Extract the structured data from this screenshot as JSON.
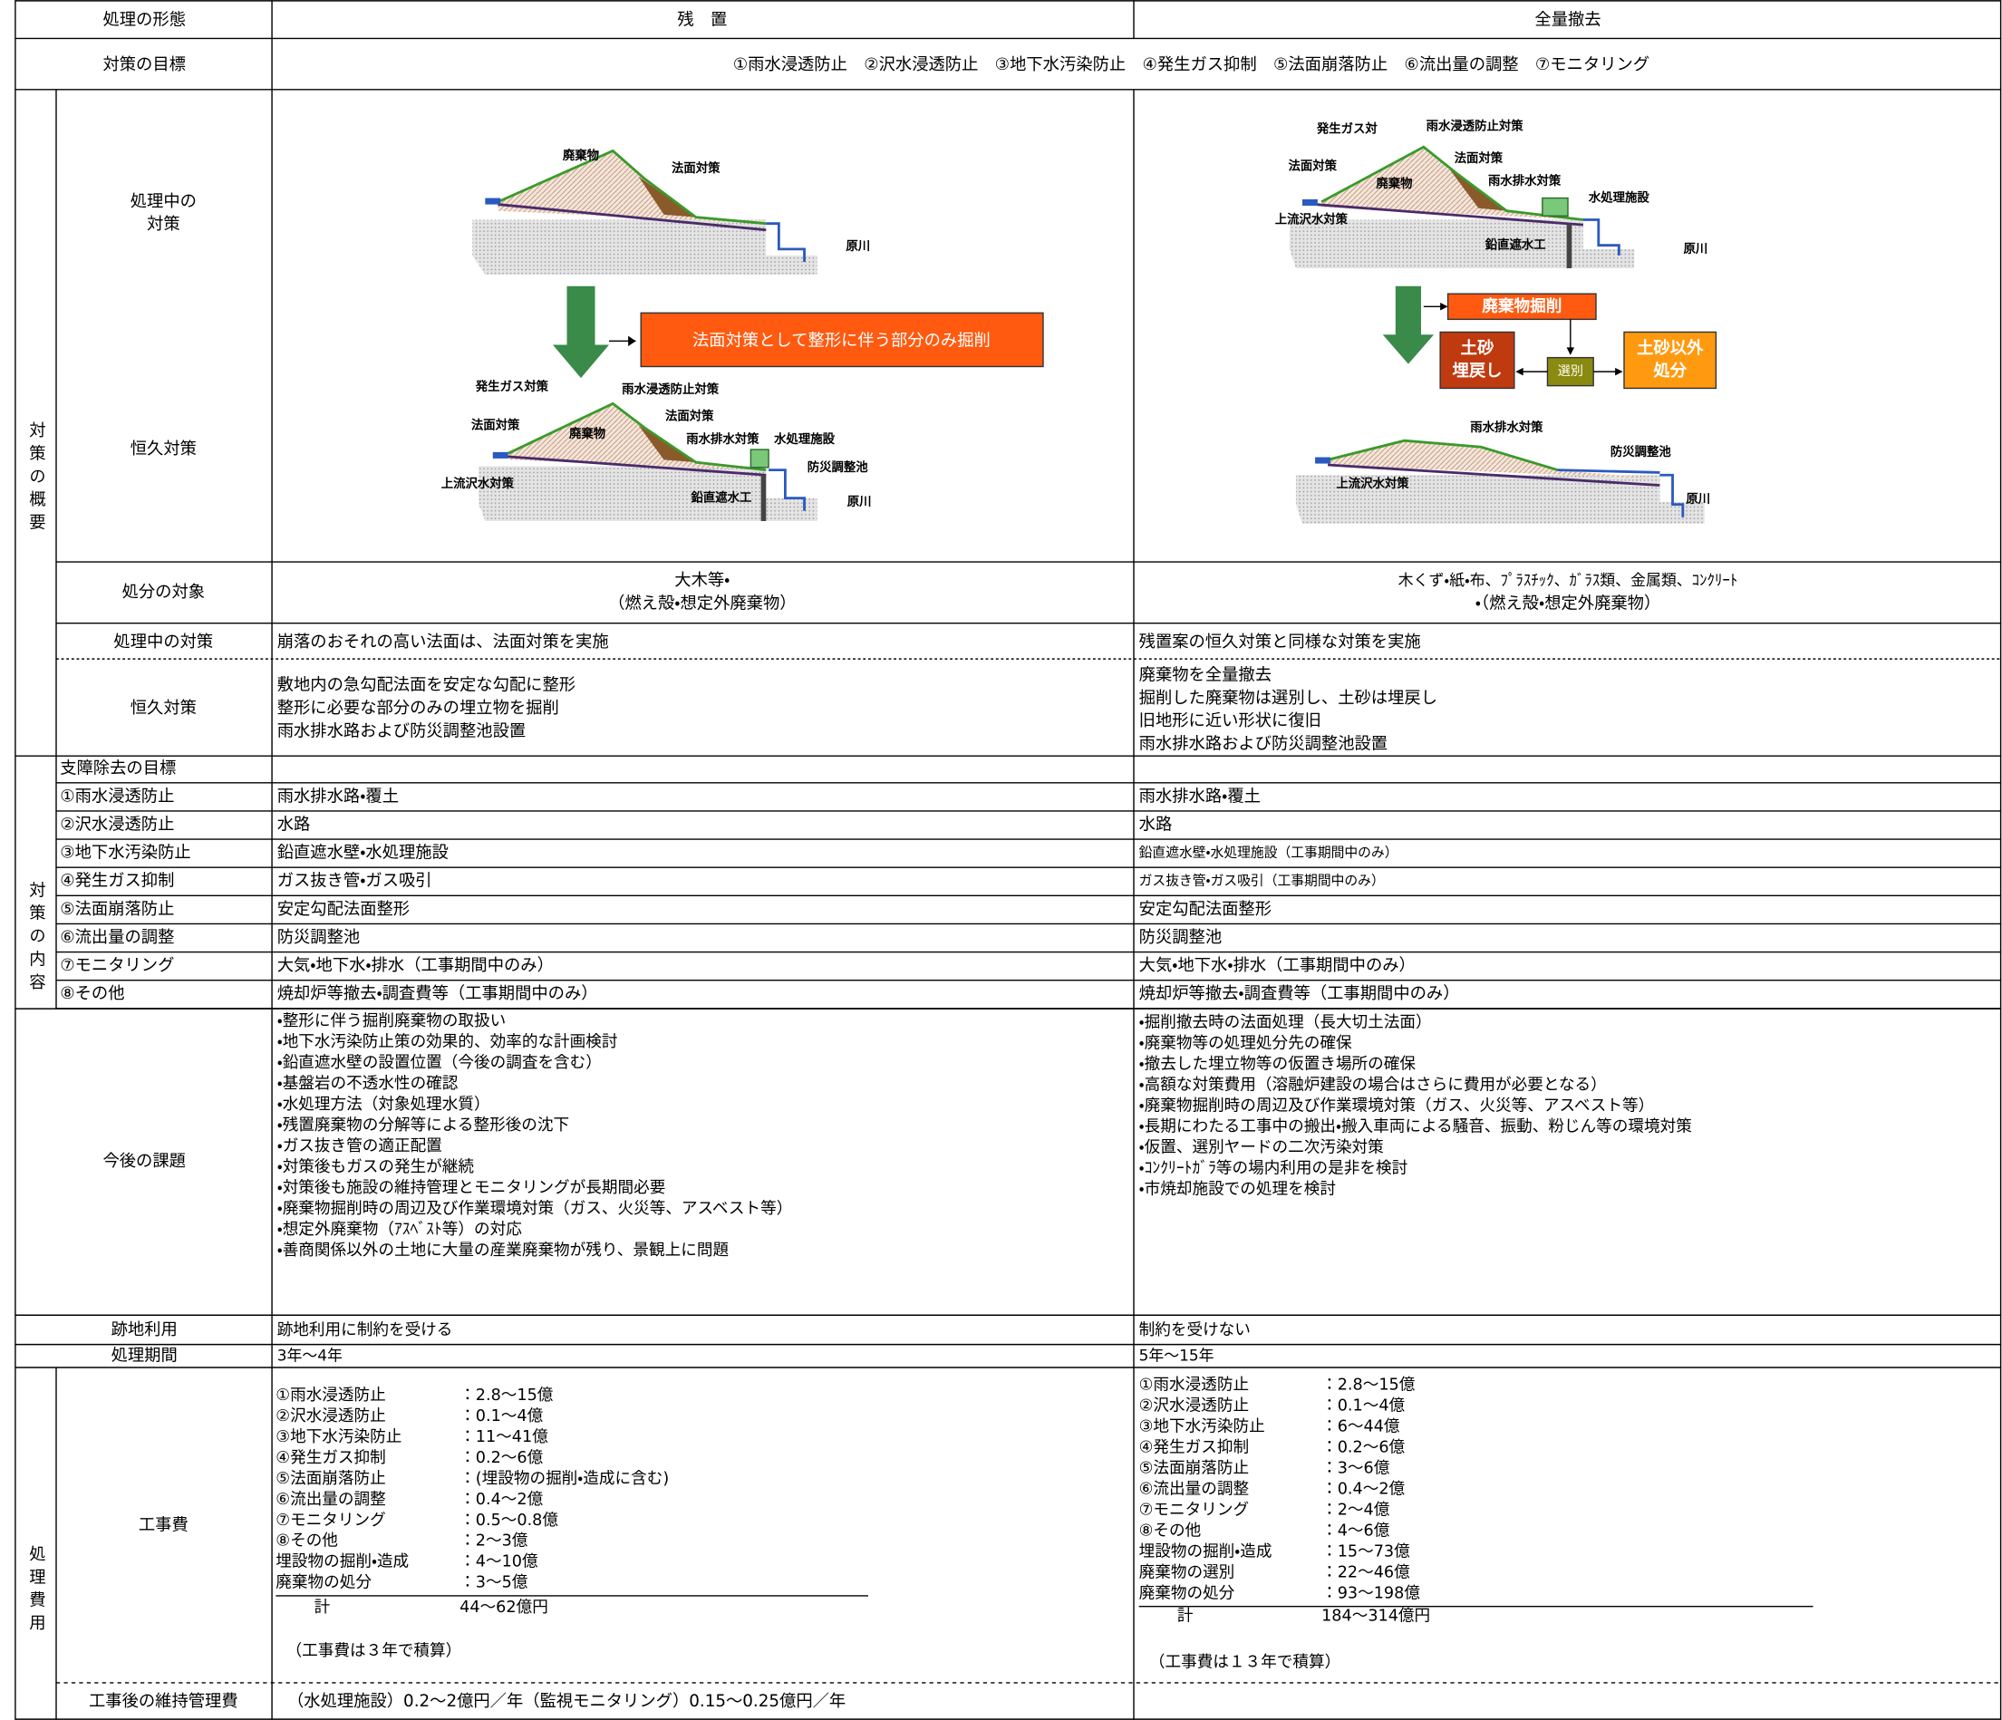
{
  "header": {
    "label": "処理の形態",
    "left": "残　置",
    "right": "全量撤去"
  },
  "goals": {
    "label": "対策の目標",
    "text": "①雨水浸透防止　②沢水浸透防止　③地下水汚染防止　④発生ガス抑制　⑤法面崩落防止　⑥流出量の調整　⑦モニタリング"
  },
  "overview": {
    "label": "対策の概要",
    "during": [
      "処理中の",
      "対策"
    ],
    "permanent": "恒久対策",
    "left_during_labels": [
      "廃棄物",
      "法面対策",
      "原川"
    ],
    "left_arrow_note": "法面対策として整形に伴う部分のみ掘削",
    "left_permanent_labels": [
      "発生ガス対策",
      "雨水浸透防止対策",
      "法面対策",
      "廃棄物",
      "法面対策",
      "雨水排水対策",
      "水処理施設",
      "防災調整池",
      "上流沢水対策",
      "鉛直遮水工",
      "原川"
    ],
    "right_during_labels": [
      "発生ガス対",
      "雨水浸透防止対策",
      "法面対策",
      "廃棄物",
      "法面対策",
      "雨水排水対策",
      "水処理施設",
      "上流沢水対策",
      "鉛直遮水工",
      "原川"
    ],
    "right_flow": [
      "廃棄物掘削",
      "土砂",
      "埋戻し",
      "選別",
      "土砂以外",
      "処分"
    ],
    "right_permanent_labels": [
      "雨水排水対策",
      "防災調整池",
      "上流沢水対策",
      "原川"
    ]
  },
  "disposal": {
    "label": "処分の対象",
    "left": [
      "大木等・",
      "（燃え殻・想定外廃棄物）"
    ],
    "right": [
      "木くず・紙・布、ﾌﾟﾗｽﾁｯｸ、ｶﾞﾗｽ類、金属類、ｺﾝｸﾘｰﾄ",
      "・（燃え殻・想定外廃棄物）"
    ]
  },
  "during_measures": {
    "label": "処理中の対策",
    "left": "崩落のおそれの高い法面は、法面対策を実施",
    "right": "残置案の恒久対策と同様な対策を実施"
  },
  "permanent_measures": {
    "label": "恒久対策",
    "left": [
      "敷地内の急勾配法面を安定な勾配に整形",
      "整形に必要な部分のみの埋立物を掘削",
      "雨水排水路および防災調整池設置"
    ],
    "right": [
      "廃棄物を全量撤去",
      "掘削した廃棄物は選別し、土砂は埋戻し",
      "旧地形に近い形状に復旧",
      "雨水排水路および防災調整池設置"
    ]
  },
  "contents": {
    "label": "対策の内容",
    "header": "支障除去の目標",
    "rows": [
      [
        "①雨水浸透防止",
        "雨水排水路・覆土",
        "雨水排水路・覆土"
      ],
      [
        "②沢水浸透防止",
        "水路",
        "水路"
      ],
      [
        "③地下水汚染防止",
        "鉛直遮水壁・水処理施設",
        "鉛直遮水壁・水処理施設（工事期間中のみ）"
      ],
      [
        "④発生ガス抑制",
        "ガス抜き管・ガス吸引",
        "ガス抜き管・ガス吸引（工事期間中のみ）"
      ],
      [
        "⑤法面崩落防止",
        "安定勾配法面整形",
        "安定勾配法面整形"
      ],
      [
        "⑥流出量の調整",
        "防災調整池",
        "防災調整池"
      ],
      [
        "⑦モニタリング",
        "大気・地下水・排水（工事期間中のみ）",
        "大気・地下水・排水（工事期間中のみ）"
      ],
      [
        "⑧その他",
        "焼却炉等撤去・調査費等（工事期間中のみ）",
        "焼却炉等撤去・調査費等（工事期間中のみ）"
      ]
    ]
  },
  "issues": {
    "label": "今後の課題",
    "left": [
      "・整形に伴う掘削廃棄物の取扱い",
      "・地下水汚染防止策の効果的、効率的な計画検討",
      "・鉛直遮水壁の設置位置（今後の調査を含む）",
      "・基盤岩の不透水性の確認",
      "・水処理方法（対象処理水質）",
      "・残置廃棄物の分解等による整形後の沈下",
      "・ガス抜き管の適正配置",
      "・対策後もガスの発生が継続",
      "・対策後も施設の維持管理とモニタリングが長期間必要",
      "・廃棄物掘削時の周辺及び作業環境対策（ガス、火災等、アスベスト等）",
      "・想定外廃棄物（ｱｽﾍﾞｽﾄ等）の対応",
      "・善商関係以外の土地に大量の産業廃棄物が残り、景観上に問題"
    ],
    "right": [
      "・掘削撤去時の法面処理（長大切土法面）",
      "・廃棄物等の処理処分先の確保",
      "・撤去した埋立物等の仮置き場所の確保",
      "・高額な対策費用（溶融炉建設の場合はさらに費用が必要となる）",
      "・廃棄物掘削時の周辺及び作業環境対策（ガス、火災等、アスベスト等）",
      "・長期にわたる工事中の搬出・搬入車両による騒音、振動、粉じん等の環境対策",
      "・仮置、選別ヤードの二次汚染対策",
      "・ｺﾝｸﾘｰﾄｶﾞﾗ等の場内利用の是非を検討",
      "・市焼却施設での処理を検討"
    ]
  },
  "site_use": {
    "label": "跡地利用",
    "left": "跡地利用に制約を受ける",
    "right": "制約を受けない"
  },
  "period": {
    "label": "処理期間",
    "left": "3年～4年",
    "right": "5年～15年"
  },
  "costs": {
    "label": "処理費用",
    "construction_label": "工事費",
    "left": {
      "items": [
        [
          "①雨水浸透防止",
          "：2.8～15億"
        ],
        [
          "②沢水浸透防止",
          "：0.1～4億"
        ],
        [
          "③地下水汚染防止",
          "：11～41億"
        ],
        [
          "④発生ガス抑制",
          "：0.2～6億"
        ],
        [
          "⑤法面崩落防止",
          "：(埋設物の掘削・造成に含む)"
        ],
        [
          "⑥流出量の調整",
          "：0.4～2億"
        ],
        [
          "⑦モニタリング",
          "：0.5～0.8億"
        ],
        [
          "⑧その他",
          "：2～3億"
        ],
        [
          "埋設物の掘削・造成",
          "：4～10億"
        ],
        [
          "廃棄物の処分",
          "：3～5億"
        ]
      ],
      "total": [
        "計",
        "44～62億円"
      ],
      "note": "（工事費は３年で積算）"
    },
    "right": {
      "items": [
        [
          "①雨水浸透防止",
          "：2.8～15億"
        ],
        [
          "②沢水浸透防止",
          "：0.1～4億"
        ],
        [
          "③地下水汚染防止",
          "：6～44億"
        ],
        [
          "④発生ガス抑制",
          "：0.2～6億"
        ],
        [
          "⑤法面崩落防止",
          "：3～6億"
        ],
        [
          "⑥流出量の調整",
          "：0.4～2億"
        ],
        [
          "⑦モニタリング",
          "：2～4億"
        ],
        [
          "⑧その他",
          "：4～6億"
        ],
        [
          "埋設物の掘削・造成",
          "：15～73億"
        ],
        [
          "廃棄物の選別",
          "：22～46億"
        ],
        [
          "廃棄物の処分",
          "：93～198億"
        ]
      ],
      "total": [
        "計",
        "184～314億円"
      ],
      "note": "（工事費は１３年で積算）"
    },
    "maintenance_label": "工事後の維持管理費",
    "maintenance": "（水処理施設）0.2～2億円／年（監視モニタリング）0.15～0.25億円／年"
  }
}
